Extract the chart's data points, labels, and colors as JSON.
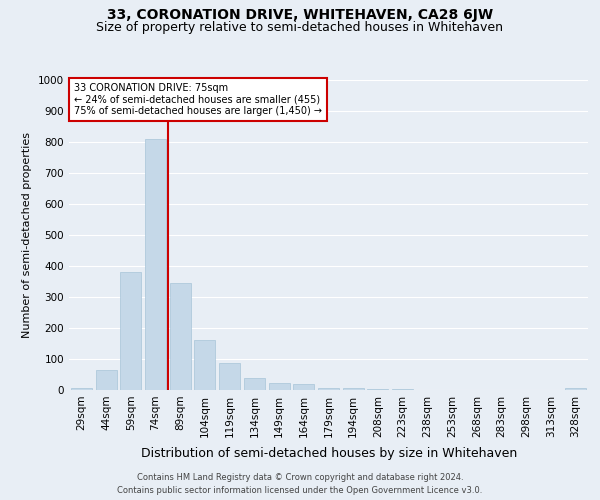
{
  "title": "33, CORONATION DRIVE, WHITEHAVEN, CA28 6JW",
  "subtitle": "Size of property relative to semi-detached houses in Whitehaven",
  "xlabel": "Distribution of semi-detached houses by size in Whitehaven",
  "ylabel": "Number of semi-detached properties",
  "categories": [
    "29sqm",
    "44sqm",
    "59sqm",
    "74sqm",
    "89sqm",
    "104sqm",
    "119sqm",
    "134sqm",
    "149sqm",
    "164sqm",
    "179sqm",
    "194sqm",
    "208sqm",
    "223sqm",
    "238sqm",
    "253sqm",
    "268sqm",
    "283sqm",
    "298sqm",
    "313sqm",
    "328sqm"
  ],
  "values": [
    5,
    65,
    380,
    810,
    345,
    160,
    88,
    40,
    22,
    18,
    8,
    5,
    2,
    2,
    1,
    1,
    1,
    1,
    1,
    1,
    8
  ],
  "bar_color": "#c5d8e8",
  "bar_edgecolor": "#a8c4d8",
  "vline_x": 3.5,
  "vline_color": "#cc0000",
  "annotation_title": "33 CORONATION DRIVE: 75sqm",
  "annotation_line1": "← 24% of semi-detached houses are smaller (455)",
  "annotation_line2": "75% of semi-detached houses are larger (1,450) →",
  "annotation_box_facecolor": "#ffffff",
  "annotation_box_edgecolor": "#cc0000",
  "ylim": [
    0,
    1000
  ],
  "yticks": [
    0,
    100,
    200,
    300,
    400,
    500,
    600,
    700,
    800,
    900,
    1000
  ],
  "footer_line1": "Contains HM Land Registry data © Crown copyright and database right 2024.",
  "footer_line2": "Contains public sector information licensed under the Open Government Licence v3.0.",
  "bg_color": "#e8eef5",
  "grid_color": "#ffffff",
  "title_fontsize": 10,
  "subtitle_fontsize": 9,
  "xlabel_fontsize": 9,
  "ylabel_fontsize": 8,
  "tick_fontsize": 7.5,
  "annotation_fontsize": 7,
  "footer_fontsize": 6
}
